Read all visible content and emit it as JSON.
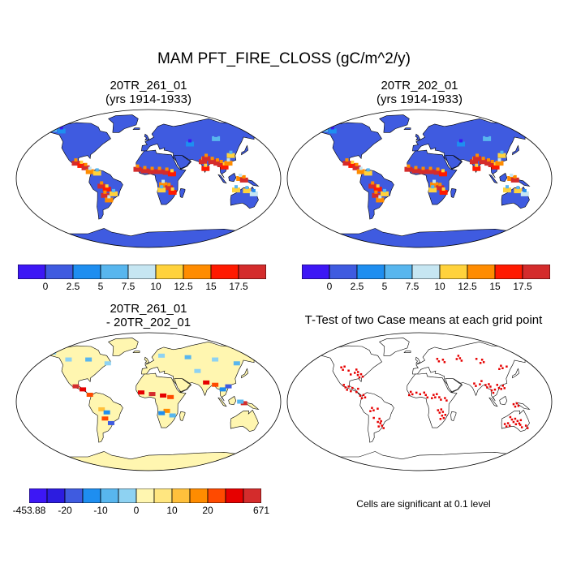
{
  "main_title": "MAM PFT_FIRE_CLOSS (gC/m^2/y)",
  "panels": [
    {
      "title_line1": "20TR_261_01",
      "title_line2": "(yrs 1914-1933)"
    },
    {
      "title_line1": "20TR_202_01",
      "title_line2": "(yrs 1914-1933)"
    },
    {
      "title_line1": "20TR_261_01",
      "title_line2": "- 20TR_202_01"
    },
    {
      "title_line1": "T-Test of two Case means at each grid point",
      "title_line2": ""
    }
  ],
  "colorbar_main": {
    "colors": [
      "#3d17f5",
      "#3f5be0",
      "#1e8ef0",
      "#58b6ee",
      "#c6e6f2",
      "#ffd23c",
      "#ff8c00",
      "#ff1a00",
      "#d42c2c"
    ],
    "labels": [
      "0",
      "2.5",
      "5",
      "7.5",
      "10",
      "12.5",
      "15",
      "17.5"
    ]
  },
  "colorbar_diff": {
    "colors": [
      "#3d17f5",
      "#2c1ce0",
      "#3f5be0",
      "#1e8ef0",
      "#58b6ee",
      "#8ed2f2",
      "#fff6b0",
      "#ffe680",
      "#ffc03c",
      "#ff8c00",
      "#ff4a00",
      "#e60000",
      "#d42c2c"
    ],
    "labels": [
      "-453.88",
      "-20",
      "-10",
      "0",
      "10",
      "20",
      "671"
    ],
    "label_slots": [
      0,
      2,
      4,
      6,
      8,
      10,
      13
    ]
  },
  "note": "Cells are significant at 0.1 level",
  "map_colors": {
    "ocean": "#ffffff",
    "land_abs": "#3f5be0",
    "land_diff": "#fff6b0",
    "land_ttest": "#ffffff",
    "significant": "#e60000"
  }
}
